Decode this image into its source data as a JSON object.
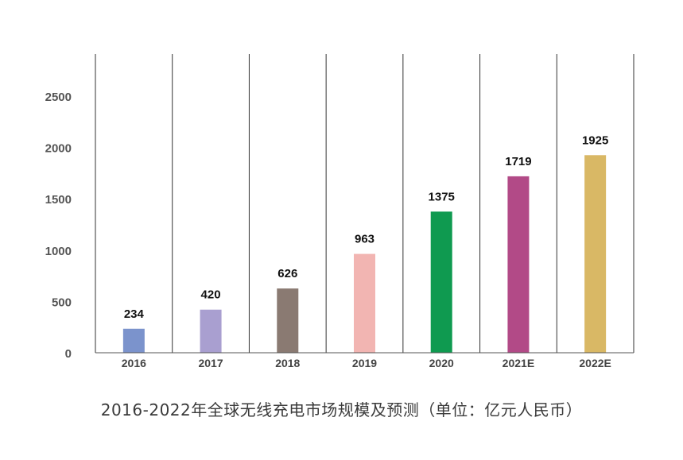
{
  "chart_data": {
    "type": "bar",
    "title": "2016-2022年全球无线充电市场规模及预测（单位：亿元人民币）",
    "categories": [
      "2016",
      "2017",
      "2018",
      "2019",
      "2020",
      "2021E",
      "2022E"
    ],
    "values": [
      234,
      420,
      626,
      963,
      1375,
      1719,
      1925
    ],
    "colors": [
      "#7b93cc",
      "#a99fd0",
      "#8a7a72",
      "#f2b5b2",
      "#0f9a50",
      "#b24a87",
      "#d9b865"
    ],
    "ylim": [
      0,
      2850
    ],
    "yticks": [
      0,
      500,
      1000,
      1500,
      2000,
      2500
    ],
    "grid": "vertical separators",
    "legend": "none",
    "xlabel": "",
    "ylabel": ""
  }
}
